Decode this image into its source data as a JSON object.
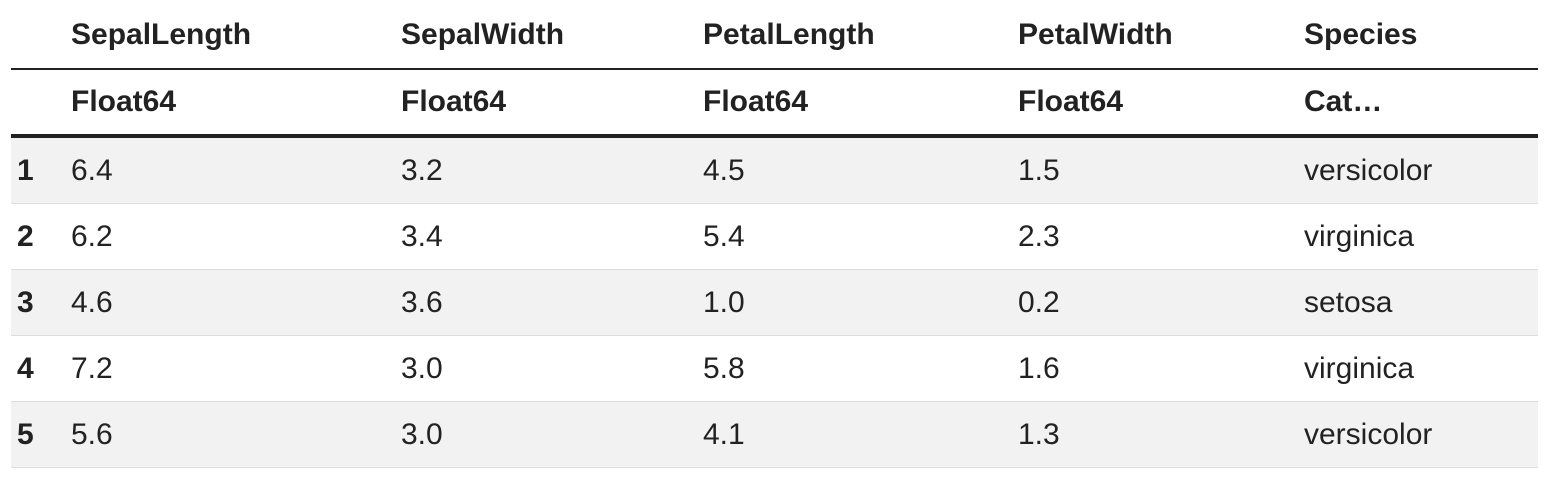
{
  "table": {
    "columns": [
      {
        "name": "SepalLength",
        "type": "Float64"
      },
      {
        "name": "SepalWidth",
        "type": "Float64"
      },
      {
        "name": "PetalLength",
        "type": "Float64"
      },
      {
        "name": "PetalWidth",
        "type": "Float64"
      },
      {
        "name": "Species",
        "type": "Cat…"
      }
    ],
    "rows": [
      {
        "index": "1",
        "cells": [
          "6.4",
          "3.2",
          "4.5",
          "1.5",
          "versicolor"
        ]
      },
      {
        "index": "2",
        "cells": [
          "6.2",
          "3.4",
          "5.4",
          "2.3",
          "virginica"
        ]
      },
      {
        "index": "3",
        "cells": [
          "4.6",
          "3.6",
          "1.0",
          "0.2",
          "setosa"
        ]
      },
      {
        "index": "4",
        "cells": [
          "7.2",
          "3.0",
          "5.8",
          "1.6",
          "virginica"
        ]
      },
      {
        "index": "5",
        "cells": [
          "5.6",
          "3.0",
          "4.1",
          "1.3",
          "versicolor"
        ]
      }
    ]
  }
}
